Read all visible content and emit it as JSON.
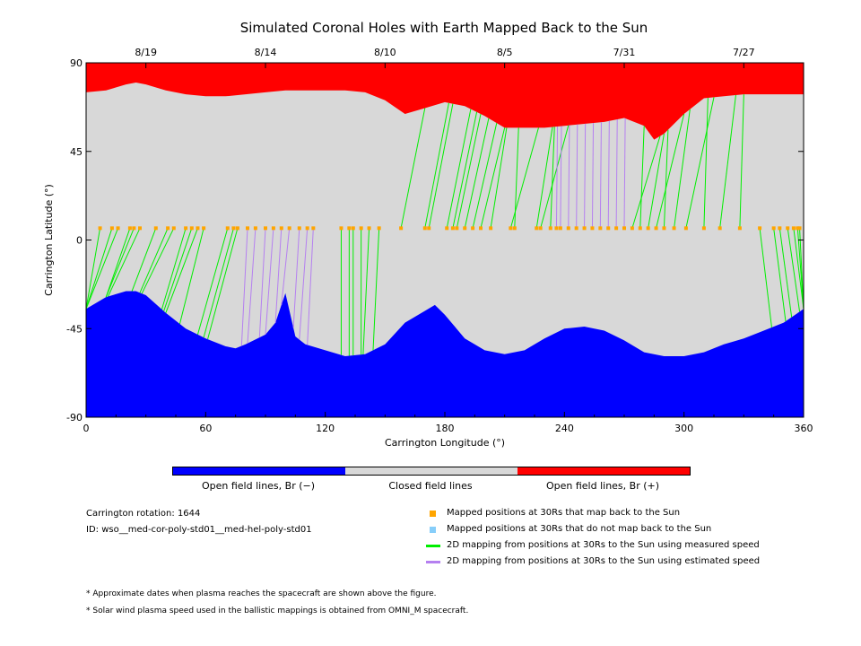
{
  "chart_data": {
    "type": "area",
    "title": "Simulated Coronal Holes with Earth Mapped Back to the Sun",
    "xlabel": "Carrington Longitude (°)",
    "ylabel": "Carrington Latitude (°)",
    "xlim": [
      0,
      360
    ],
    "ylim": [
      -90,
      90
    ],
    "x_ticks": [
      "0",
      "60",
      "120",
      "180",
      "240",
      "300",
      "360"
    ],
    "y_ticks": [
      "90",
      "45",
      "0",
      "-45",
      "-90"
    ],
    "top_date_ticks": [
      {
        "label": "8/19",
        "lon": 30
      },
      {
        "label": "8/14",
        "lon": 90
      },
      {
        "label": "8/10",
        "lon": 150
      },
      {
        "label": "8/5",
        "lon": 210
      },
      {
        "label": "7/31",
        "lon": 270
      },
      {
        "label": "7/27",
        "lon": 330
      }
    ],
    "colors": {
      "open_negative": "#0000ff",
      "closed": "#d8d8d8",
      "open_positive": "#ff0000",
      "mapped_orange": "#ffa500",
      "unmapped_blue": "#87cefa",
      "measured_green": "#00ee00",
      "estimated_purple": "#b580f0"
    },
    "north_boundary": {
      "lon": [
        0,
        10,
        20,
        25,
        30,
        40,
        50,
        60,
        70,
        80,
        90,
        100,
        110,
        120,
        130,
        140,
        150,
        160,
        170,
        180,
        190,
        200,
        210,
        220,
        230,
        240,
        250,
        260,
        270,
        280,
        285,
        290,
        300,
        310,
        320,
        330,
        340,
        350,
        360
      ],
      "lat": [
        75,
        76,
        79,
        80,
        79,
        76,
        74,
        73,
        73,
        74,
        75,
        76,
        76,
        76,
        76,
        75,
        71,
        64,
        67,
        70,
        68,
        63,
        57,
        57,
        57,
        58,
        59,
        60,
        62,
        58,
        51,
        54,
        64,
        72,
        73,
        74,
        74,
        74,
        74
      ]
    },
    "south_boundary": {
      "lon": [
        0,
        10,
        20,
        25,
        30,
        40,
        50,
        60,
        70,
        75,
        80,
        90,
        95,
        100,
        105,
        110,
        120,
        130,
        140,
        150,
        160,
        170,
        175,
        180,
        190,
        200,
        210,
        220,
        230,
        240,
        250,
        260,
        270,
        280,
        290,
        300,
        310,
        320,
        330,
        340,
        350,
        360
      ],
      "lat": [
        -35,
        -29,
        -26,
        -26,
        -28,
        -37,
        -45,
        -50,
        -54,
        -55,
        -53,
        -48,
        -42,
        -27,
        -49,
        -53,
        -56,
        -59,
        -58,
        -53,
        -42,
        -36,
        -33,
        -38,
        -50,
        -56,
        -58,
        -56,
        -50,
        -45,
        -44,
        -46,
        -51,
        -57,
        -59,
        -59,
        -57,
        -53,
        -50,
        -46,
        -42,
        -35
      ]
    },
    "mapped_points": {
      "lat": 6,
      "lon": [
        7,
        13,
        16,
        22,
        24,
        27,
        35,
        41,
        44,
        50,
        53,
        56,
        59,
        71,
        74,
        76,
        81,
        85,
        90,
        94,
        98,
        102,
        107,
        111,
        114,
        128,
        132,
        134,
        138,
        142,
        147,
        158,
        170,
        172,
        181,
        184,
        186,
        190,
        194,
        198,
        203,
        213,
        215,
        226,
        228,
        233,
        236,
        238,
        242,
        246,
        250,
        254,
        258,
        262,
        266,
        270,
        274,
        278,
        282,
        286,
        290,
        295,
        301,
        310,
        318,
        328,
        338,
        345,
        348,
        352,
        355,
        357,
        358
      ]
    },
    "estimated_lon_ranges": [
      [
        78,
        115
      ],
      [
        235,
        272
      ]
    ],
    "legend": {
      "colorbar": [
        "Open field lines, Br (−)",
        "Closed field lines",
        "Open field lines, Br (+)"
      ],
      "items": [
        "Mapped positions at 30Rs that map back to the Sun",
        "Mapped positions at 30Rs that do not map back to the Sun",
        "2D mapping from positions at 30Rs to the Sun using measured speed",
        "2D mapping from positions at 30Rs to the Sun using estimated speed"
      ]
    },
    "info": {
      "rotation": "Carrington rotation: 1644",
      "id": "ID: wso__med-cor-poly-std01__med-hel-poly-std01"
    },
    "notes": [
      "* Approximate dates when plasma reaches the spacecraft are shown above the figure.",
      "* Solar wind plasma speed used in the ballistic mappings is obtained from OMNI_M spacecraft."
    ]
  }
}
